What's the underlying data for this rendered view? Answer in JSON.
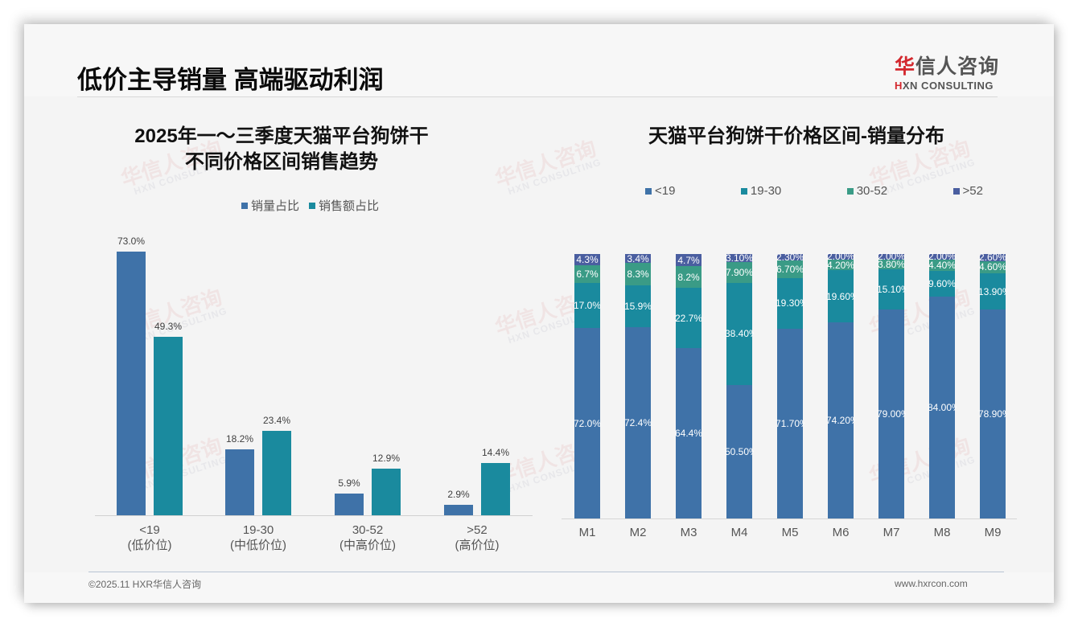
{
  "header": {
    "title": "低价主导销量 高端驱动利润",
    "logo_cn_first": "华",
    "logo_cn_rest": "信人咨询",
    "logo_en_first": "H",
    "logo_en_rest": "XN CONSULTING"
  },
  "watermark": {
    "cn": "华信人咨询",
    "en": "HXN CONSULTING"
  },
  "left_chart": {
    "title_line1": "2025年一～三季度天猫平台狗饼干",
    "title_line2": "不同价格区间销售趋势",
    "legend": [
      {
        "label": "销量占比",
        "color": "#3f72a8"
      },
      {
        "label": "销售额占比",
        "color": "#1a8a9e"
      }
    ],
    "categories": [
      {
        "range": "<19",
        "tier": "(低价位)"
      },
      {
        "range": "19-30",
        "tier": "(中低价位)"
      },
      {
        "range": "30-52",
        "tier": "(中高价位)"
      },
      {
        "range": ">52",
        "tier": "(高价位)"
      }
    ],
    "volume_labels": [
      "73.0%",
      "18.2%",
      "5.9%",
      "2.9%"
    ],
    "revenue_labels": [
      "49.3%",
      "23.4%",
      "12.9%",
      "14.4%"
    ]
  },
  "right_chart": {
    "title": "天猫平台狗饼干价格区间-销量分布",
    "legend": [
      {
        "label": "<19",
        "color": "#3f72a8"
      },
      {
        "label": "19-30",
        "color": "#1a8a9e"
      },
      {
        "label": "30-52",
        "color": "#3a9b86"
      },
      {
        "label": ">52",
        "color": "#4a5ea0"
      }
    ],
    "months": [
      "M1",
      "M2",
      "M3",
      "M4",
      "M5",
      "M6",
      "M7",
      "M8",
      "M9"
    ],
    "labels": {
      "lt19": [
        "72.0%",
        "72.4%",
        "64.4%",
        "50.50%",
        "71.70%",
        "74.20%",
        "79.00%",
        "84.00%",
        "78.90%"
      ],
      "r19_30": [
        "17.0%",
        "15.9%",
        "22.7%",
        "38.40%",
        "19.30%",
        "19.60%",
        "15.10%",
        "9.60%",
        "13.90%"
      ],
      "r30_52": [
        "6.7%",
        "8.3%",
        "8.2%",
        "7.90%",
        "6.70%",
        "4.20%",
        "3.80%",
        "4.40%",
        "4.60%"
      ],
      "gt52": [
        "4.3%",
        "3.4%",
        "4.7%",
        "3.10%",
        "2.30%",
        "2.00%",
        "2.00%",
        "2.00%",
        "2.60%"
      ]
    }
  },
  "footer": {
    "copyright": "©2025.11 HXR华信人咨询",
    "website": "www.hxrcon.com"
  },
  "chart_data": [
    {
      "type": "bar",
      "title": "2025年一～三季度天猫平台狗饼干不同价格区间销售趋势",
      "categories": [
        "<19 (低价位)",
        "19-30 (中低价位)",
        "30-52 (中高价位)",
        ">52 (高价位)"
      ],
      "series": [
        {
          "name": "销量占比",
          "values": [
            73.0,
            18.2,
            5.9,
            2.9
          ],
          "color": "#3f72a8"
        },
        {
          "name": "销售额占比",
          "values": [
            49.3,
            23.4,
            12.9,
            14.4
          ],
          "color": "#1a8a9e"
        }
      ],
      "xlabel": "",
      "ylabel": "",
      "unit": "%",
      "grid": false,
      "legend_position": "top"
    },
    {
      "type": "bar",
      "stacked": true,
      "title": "天猫平台狗饼干价格区间-销量分布",
      "categories": [
        "M1",
        "M2",
        "M3",
        "M4",
        "M5",
        "M6",
        "M7",
        "M8",
        "M9"
      ],
      "series": [
        {
          "name": "<19",
          "values": [
            72.0,
            72.4,
            64.4,
            50.5,
            71.7,
            74.2,
            79.0,
            84.0,
            78.9
          ],
          "color": "#3f72a8"
        },
        {
          "name": "19-30",
          "values": [
            17.0,
            15.9,
            22.7,
            38.4,
            19.3,
            19.6,
            15.1,
            9.6,
            13.9
          ],
          "color": "#1a8a9e"
        },
        {
          "name": "30-52",
          "values": [
            6.7,
            8.3,
            8.2,
            7.9,
            6.7,
            4.2,
            3.8,
            4.4,
            4.6
          ],
          "color": "#3a9b86"
        },
        {
          "name": ">52",
          "values": [
            4.3,
            3.4,
            4.7,
            3.1,
            2.3,
            2.0,
            2.0,
            2.0,
            2.6
          ],
          "color": "#4a5ea0"
        }
      ],
      "xlabel": "",
      "ylabel": "",
      "unit": "%",
      "ylim": [
        0,
        100
      ],
      "grid": false,
      "legend_position": "top"
    }
  ]
}
